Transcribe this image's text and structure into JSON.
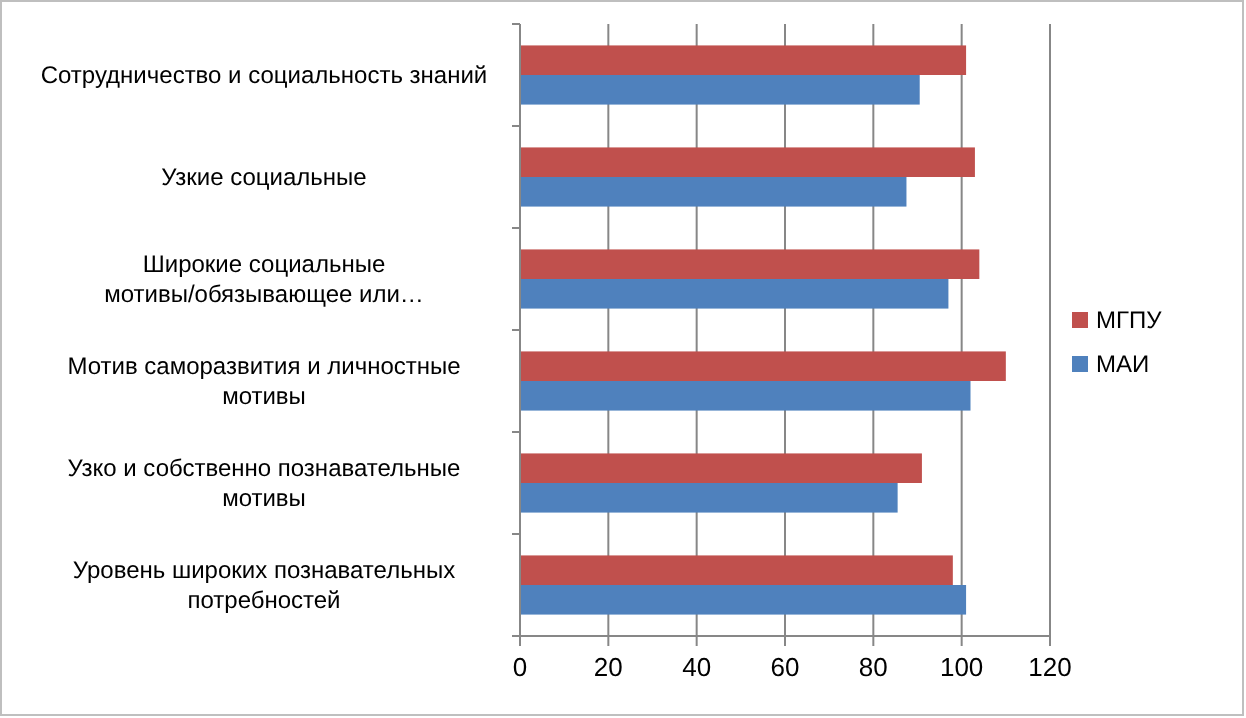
{
  "chart_data": {
    "type": "bar",
    "orientation": "horizontal",
    "categories": [
      "Сотрудничество и социальность знаний",
      "Узкие социальные",
      "Широкие социальные мотивы/обязывающее или…",
      "Мотив саморазвития и личностные мотивы",
      "Узко и собственно познавательные мотивы",
      "Уровень широких познавательных потребностей"
    ],
    "series": [
      {
        "name": "МГПУ",
        "color": "#c0504d",
        "values": [
          101,
          103,
          104,
          110,
          91,
          98
        ]
      },
      {
        "name": "МАИ",
        "color": "#4f81bd",
        "values": [
          90.5,
          87.5,
          97,
          102,
          85.5,
          101
        ]
      }
    ],
    "xlim": [
      0,
      120
    ],
    "xticks": [
      0,
      20,
      40,
      60,
      80,
      100,
      120
    ],
    "grid": "x",
    "legend": "right"
  }
}
